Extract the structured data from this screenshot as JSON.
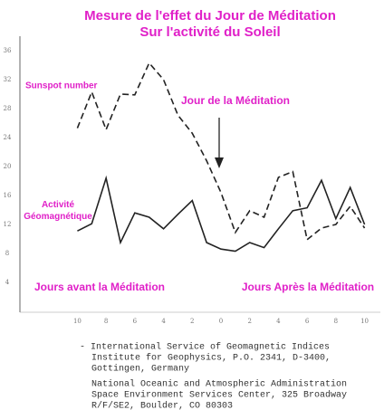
{
  "chart_data": {
    "type": "line",
    "title": [
      "Mesure de l'effet du Jour de Méditation",
      "Sur l'activité du Soleil"
    ],
    "x": [
      -10,
      -9,
      -8,
      -7,
      -6,
      -5,
      -4,
      -3,
      -2,
      -1,
      0,
      1,
      2,
      3,
      4,
      5,
      6,
      7,
      8,
      9,
      10
    ],
    "series": [
      {
        "name": "Sunspot number",
        "color": "#222",
        "dashed": true,
        "values": [
          25.3,
          30.3,
          25.1,
          30,
          29.9,
          34.3,
          32,
          27.1,
          24.6,
          20.8,
          16.4,
          10.9,
          13.9,
          13,
          18.5,
          19.3,
          9.9,
          11.5,
          12,
          14.5,
          11.5
        ]
      },
      {
        "name": "Activité Géomagnétique",
        "color": "#222",
        "dashed": false,
        "values": [
          11.1,
          12.1,
          18.4,
          9.5,
          13.6,
          13,
          11.4,
          13.4,
          15.3,
          9.5,
          8.6,
          8.3,
          9.5,
          8.8,
          11.4,
          13.9,
          14.3,
          18.1,
          12.8,
          17.1,
          12
        ]
      }
    ],
    "xlim": [
      -14,
      11.1
    ],
    "xticks": [
      {
        "value": -10,
        "label": "10"
      },
      {
        "value": -8,
        "label": "8"
      },
      {
        "value": -6,
        "label": "6"
      },
      {
        "value": -4,
        "label": "4"
      },
      {
        "value": -2,
        "label": "2"
      },
      0,
      2,
      4,
      6,
      8,
      10
    ],
    "ylim": [
      0,
      38
    ],
    "yticks": [
      4,
      8,
      12,
      16,
      20,
      24,
      28,
      32,
      36
    ],
    "annotations": [
      "Jour de la Méditation",
      "Jours avant la Méditation",
      "Jours Après la Méditation"
    ],
    "source": [
      "- International Service of Geomagnetic Indices",
      "Institute for Geophysics, P.O. 2341, D-3400,",
      "Gottingen, Germany",
      "National Oceanic and Atmospheric Administration",
      "Space Environment Services Center, 325 Broadway",
      "R/F/SE2, Boulder, CO 80303"
    ]
  }
}
